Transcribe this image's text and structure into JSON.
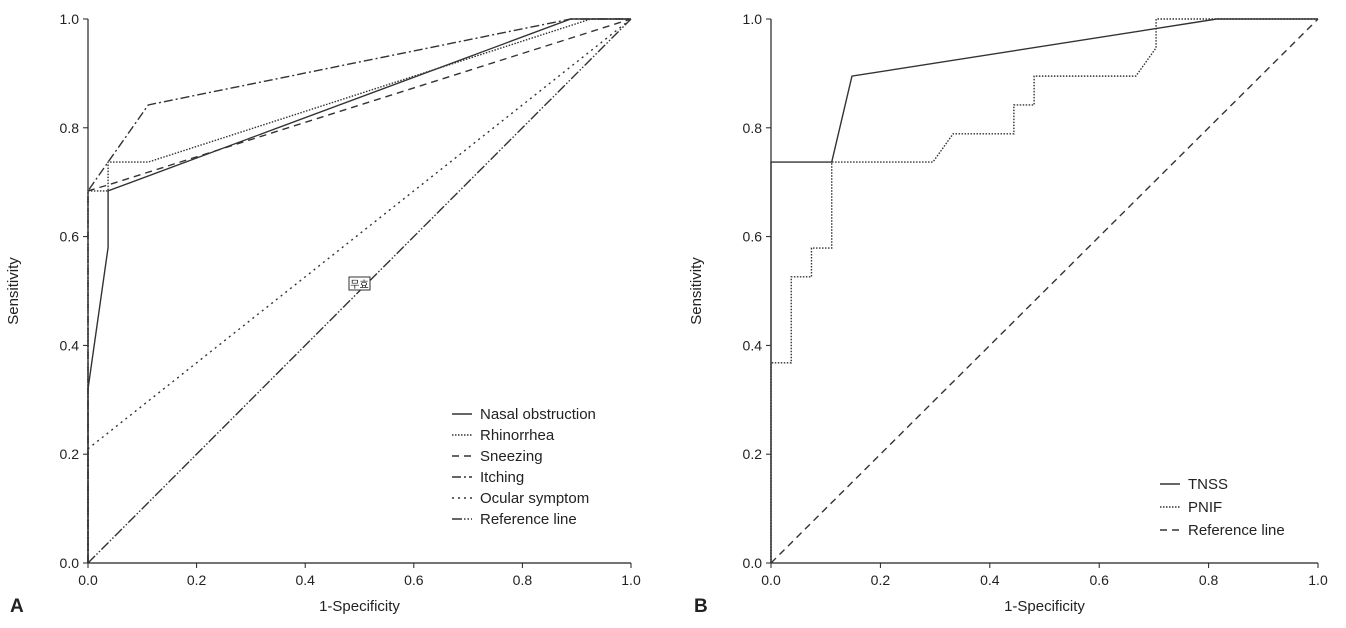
{
  "figure": {
    "panels": [
      "A",
      "B"
    ]
  },
  "chart_data": [
    {
      "type": "line",
      "panel": "A",
      "xlabel": "1-Specificity",
      "ylabel": "Sensitivity",
      "xlim": [
        0,
        1
      ],
      "ylim": [
        0,
        1
      ],
      "xticks": [
        "0.0",
        "0.2",
        "0.4",
        "0.6",
        "0.8",
        "1.0"
      ],
      "yticks": [
        "0.0",
        "0.2",
        "0.4",
        "0.6",
        "0.8",
        "1.0"
      ],
      "grid": false,
      "legend_position": "bottom-right",
      "annotation": "무효",
      "series": [
        {
          "name": "Nasal obstruction",
          "dash": "solid",
          "points": [
            [
              0,
              0
            ],
            [
              0,
              0.32
            ],
            [
              0.037,
              0.58
            ],
            [
              0.037,
              0.684
            ],
            [
              0.889,
              1.0
            ],
            [
              1.0,
              1.0
            ]
          ]
        },
        {
          "name": "Rhinorrhea",
          "dash": "dotted",
          "points": [
            [
              0,
              0
            ],
            [
              0,
              0.684
            ],
            [
              0.037,
              0.684
            ],
            [
              0.037,
              0.737
            ],
            [
              0.111,
              0.737
            ],
            [
              0.926,
              1.0
            ],
            [
              1.0,
              1.0
            ]
          ]
        },
        {
          "name": "Sneezing",
          "dash": "dashed",
          "points": [
            [
              0,
              0
            ],
            [
              0,
              0.684
            ],
            [
              0.037,
              0.695
            ],
            [
              1.0,
              1.0
            ]
          ]
        },
        {
          "name": "Itching",
          "dash": "dashdot",
          "points": [
            [
              0,
              0
            ],
            [
              0,
              0.684
            ],
            [
              0.037,
              0.737
            ],
            [
              0.111,
              0.842
            ],
            [
              0.889,
              1.0
            ],
            [
              1.0,
              1.0
            ]
          ]
        },
        {
          "name": "Ocular symptom",
          "dash": "sparse-dotted",
          "points": [
            [
              0,
              0
            ],
            [
              0,
              0.21
            ],
            [
              1.0,
              1.0
            ]
          ]
        },
        {
          "name": "Reference line",
          "dash": "dashdotdot",
          "points": [
            [
              0,
              0
            ],
            [
              1.0,
              1.0
            ]
          ]
        }
      ]
    },
    {
      "type": "line",
      "panel": "B",
      "xlabel": "1-Specificity",
      "ylabel": "Sensitivity",
      "xlim": [
        0,
        1
      ],
      "ylim": [
        0,
        1
      ],
      "xticks": [
        "0.0",
        "0.2",
        "0.4",
        "0.6",
        "0.8",
        "1.0"
      ],
      "yticks": [
        "0.0",
        "0.2",
        "0.4",
        "0.6",
        "0.8",
        "1.0"
      ],
      "grid": false,
      "legend_position": "bottom-right",
      "series": [
        {
          "name": "TNSS",
          "dash": "solid",
          "points": [
            [
              0,
              0
            ],
            [
              0,
              0.737
            ],
            [
              0.111,
              0.737
            ],
            [
              0.148,
              0.895
            ],
            [
              0.815,
              1.0
            ],
            [
              1.0,
              1.0
            ]
          ]
        },
        {
          "name": "PNIF",
          "dash": "dotted",
          "points": [
            [
              0,
              0
            ],
            [
              0,
              0.368
            ],
            [
              0.037,
              0.368
            ],
            [
              0.037,
              0.526
            ],
            [
              0.074,
              0.526
            ],
            [
              0.074,
              0.579
            ],
            [
              0.111,
              0.579
            ],
            [
              0.111,
              0.737
            ],
            [
              0.296,
              0.737
            ],
            [
              0.333,
              0.789
            ],
            [
              0.444,
              0.789
            ],
            [
              0.444,
              0.842
            ],
            [
              0.481,
              0.842
            ],
            [
              0.481,
              0.895
            ],
            [
              0.667,
              0.895
            ],
            [
              0.704,
              0.947
            ],
            [
              0.704,
              1.0
            ],
            [
              1.0,
              1.0
            ]
          ]
        },
        {
          "name": "Reference line",
          "dash": "dashed",
          "points": [
            [
              0,
              0
            ],
            [
              1.0,
              1.0
            ]
          ]
        }
      ]
    }
  ]
}
